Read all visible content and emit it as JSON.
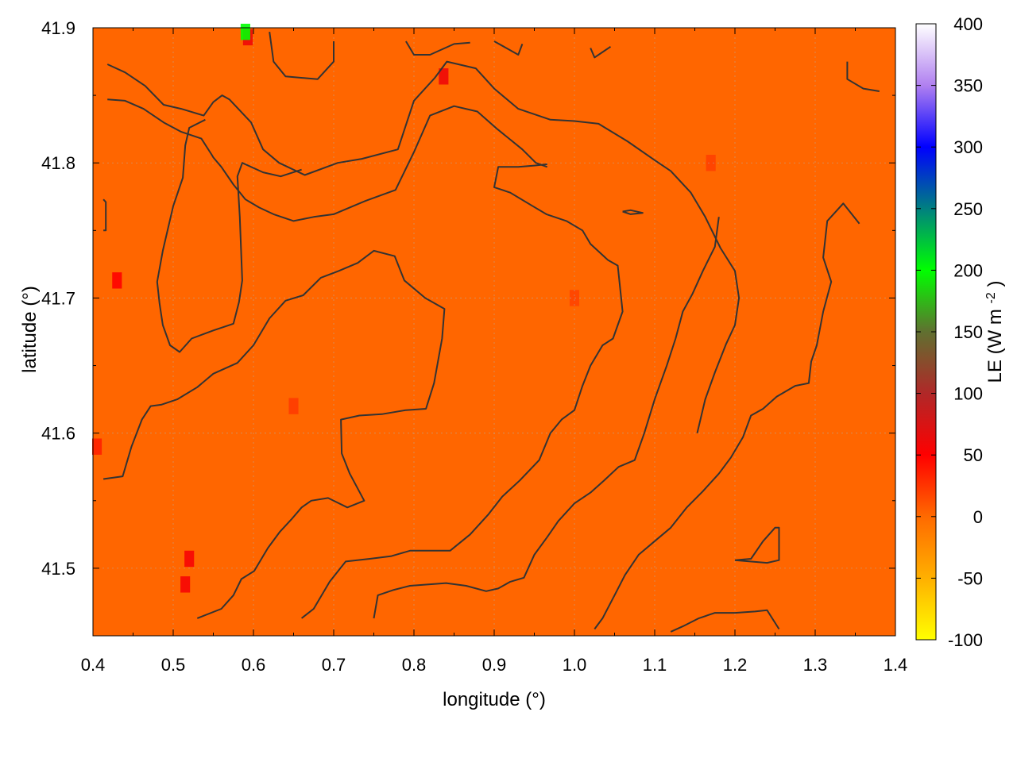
{
  "chart_data": {
    "type": "heatmap",
    "title": "",
    "xlabel": "longitude (°)",
    "ylabel": "latitude (°)",
    "colorbar_label": "LE (W m-2)",
    "colorbar_label_base": "LE (W m",
    "colorbar_label_sup": "-2",
    "colorbar_label_end": ")",
    "xlim": [
      0.4,
      1.4
    ],
    "ylim": [
      41.45,
      41.9
    ],
    "clim": [
      -100,
      400
    ],
    "x_ticks": [
      "0.4",
      "0.5",
      "0.6",
      "0.7",
      "0.8",
      "0.9",
      "1.0",
      "1.1",
      "1.2",
      "1.3",
      "1.4"
    ],
    "y_ticks": [
      "41.5",
      "41.6",
      "41.7",
      "41.8",
      "41.9"
    ],
    "colorbar_ticks": [
      "-100",
      "-50",
      "0",
      "50",
      "100",
      "150",
      "200",
      "250",
      "300",
      "350",
      "400"
    ],
    "grid": true,
    "colormap": [
      {
        "value": -100,
        "color": "#ffff00"
      },
      {
        "value": -50,
        "color": "#ffb000"
      },
      {
        "value": 0,
        "color": "#ff6a00"
      },
      {
        "value": 50,
        "color": "#ff0000"
      },
      {
        "value": 100,
        "color": "#b02828"
      },
      {
        "value": 150,
        "color": "#607030"
      },
      {
        "value": 200,
        "color": "#00ff00"
      },
      {
        "value": 250,
        "color": "#008080"
      },
      {
        "value": 300,
        "color": "#0000ff"
      },
      {
        "value": 350,
        "color": "#b080f0"
      },
      {
        "value": 400,
        "color": "#ffffff"
      }
    ],
    "background_value": 10,
    "background_color": "#ff6600",
    "patches": [
      {
        "lon": 0.593,
        "lat": 41.893,
        "value": 60
      },
      {
        "lon": 0.59,
        "lat": 41.897,
        "value": 200
      },
      {
        "lon": 0.837,
        "lat": 41.864,
        "value": 60
      },
      {
        "lon": 0.43,
        "lat": 41.713,
        "value": 50
      },
      {
        "lon": 0.52,
        "lat": 41.507,
        "value": 55
      },
      {
        "lon": 0.515,
        "lat": 41.488,
        "value": 55
      },
      {
        "lon": 0.405,
        "lat": 41.59,
        "value": 35
      },
      {
        "lon": 0.65,
        "lat": 41.62,
        "value": 22
      },
      {
        "lon": 1.17,
        "lat": 41.8,
        "value": 20
      },
      {
        "lon": 1.0,
        "lat": 41.7,
        "value": 18
      }
    ],
    "contour_color": "#333333",
    "contours": [
      [
        [
          0.418,
          41.873
        ],
        [
          0.44,
          41.867
        ],
        [
          0.465,
          41.857
        ],
        [
          0.488,
          41.843
        ],
        [
          0.51,
          41.84
        ],
        [
          0.538,
          41.835
        ],
        [
          0.55,
          41.845
        ],
        [
          0.561,
          41.85
        ],
        [
          0.57,
          41.847
        ],
        [
          0.597,
          41.83
        ],
        [
          0.612,
          41.81
        ],
        [
          0.632,
          41.8
        ],
        [
          0.664,
          41.791
        ],
        [
          0.705,
          41.8
        ],
        [
          0.735,
          41.803
        ],
        [
          0.78,
          41.81
        ],
        [
          0.8,
          41.846
        ],
        [
          0.826,
          41.863
        ],
        [
          0.841,
          41.875
        ],
        [
          0.877,
          41.87
        ],
        [
          0.9,
          41.855
        ],
        [
          0.93,
          41.84
        ],
        [
          0.97,
          41.832
        ],
        [
          1.0,
          41.831
        ],
        [
          1.03,
          41.829
        ],
        [
          1.066,
          41.816
        ],
        [
          1.1,
          41.802
        ],
        [
          1.12,
          41.794
        ],
        [
          1.145,
          41.778
        ],
        [
          1.163,
          41.76
        ],
        [
          1.182,
          41.737
        ],
        [
          1.2,
          41.72
        ],
        [
          1.205,
          41.7
        ],
        [
          1.2,
          41.68
        ],
        [
          1.189,
          41.666
        ],
        [
          1.175,
          41.645
        ],
        [
          1.163,
          41.625
        ],
        [
          1.153,
          41.6
        ]
      ],
      [
        [
          0.418,
          41.847
        ],
        [
          0.44,
          41.846
        ],
        [
          0.463,
          41.84
        ],
        [
          0.488,
          41.83
        ],
        [
          0.51,
          41.823
        ],
        [
          0.535,
          41.818
        ],
        [
          0.548,
          41.806
        ],
        [
          0.55,
          41.804
        ],
        [
          0.56,
          41.797
        ],
        [
          0.575,
          41.784
        ],
        [
          0.59,
          41.773
        ],
        [
          0.607,
          41.767
        ],
        [
          0.625,
          41.762
        ],
        [
          0.65,
          41.757
        ],
        [
          0.675,
          41.76
        ],
        [
          0.7,
          41.762
        ],
        [
          0.74,
          41.772
        ],
        [
          0.777,
          41.78
        ],
        [
          0.8,
          41.808
        ],
        [
          0.82,
          41.835
        ],
        [
          0.85,
          41.842
        ],
        [
          0.879,
          41.838
        ],
        [
          0.904,
          41.825
        ],
        [
          0.935,
          41.81
        ],
        [
          0.952,
          41.8
        ],
        [
          0.966,
          41.797
        ]
      ],
      [
        [
          0.54,
          41.832
        ],
        [
          0.52,
          41.826
        ],
        [
          0.515,
          41.813
        ],
        [
          0.512,
          41.789
        ],
        [
          0.5,
          41.768
        ],
        [
          0.487,
          41.735
        ],
        [
          0.48,
          41.712
        ],
        [
          0.483,
          41.696
        ],
        [
          0.487,
          41.68
        ],
        [
          0.496,
          41.665
        ],
        [
          0.508,
          41.66
        ],
        [
          0.523,
          41.67
        ],
        [
          0.55,
          41.676
        ],
        [
          0.575,
          41.681
        ],
        [
          0.582,
          41.697
        ],
        [
          0.586,
          41.713
        ],
        [
          0.583,
          41.76
        ],
        [
          0.58,
          41.79
        ],
        [
          0.586,
          41.8
        ],
        [
          0.612,
          41.793
        ],
        [
          0.634,
          41.79
        ],
        [
          0.66,
          41.795
        ]
      ],
      [
        [
          0.413,
          41.566
        ],
        [
          0.437,
          41.568
        ],
        [
          0.448,
          41.59
        ],
        [
          0.461,
          41.61
        ],
        [
          0.472,
          41.62
        ],
        [
          0.485,
          41.621
        ],
        [
          0.505,
          41.625
        ],
        [
          0.53,
          41.634
        ],
        [
          0.55,
          41.644
        ],
        [
          0.58,
          41.652
        ],
        [
          0.6,
          41.665
        ],
        [
          0.62,
          41.685
        ],
        [
          0.64,
          41.698
        ],
        [
          0.662,
          41.702
        ],
        [
          0.684,
          41.715
        ],
        [
          0.706,
          41.72
        ],
        [
          0.73,
          41.726
        ],
        [
          0.75,
          41.735
        ],
        [
          0.776,
          41.731
        ],
        [
          0.788,
          41.713
        ],
        [
          0.814,
          41.7
        ],
        [
          0.838,
          41.692
        ],
        [
          0.835,
          41.67
        ],
        [
          0.825,
          41.637
        ],
        [
          0.815,
          41.618
        ],
        [
          0.79,
          41.617
        ],
        [
          0.76,
          41.614
        ],
        [
          0.732,
          41.613
        ],
        [
          0.709,
          41.61
        ],
        [
          0.71,
          41.585
        ],
        [
          0.72,
          41.57
        ],
        [
          0.738,
          41.55
        ],
        [
          0.717,
          41.545
        ],
        [
          0.693,
          41.552
        ],
        [
          0.672,
          41.55
        ],
        [
          0.66,
          41.545
        ],
        [
          0.647,
          41.536
        ],
        [
          0.633,
          41.527
        ],
        [
          0.618,
          41.515
        ],
        [
          0.601,
          41.498
        ],
        [
          0.585,
          41.492
        ],
        [
          0.575,
          41.48
        ],
        [
          0.56,
          41.47
        ],
        [
          0.53,
          41.463
        ]
      ],
      [
        [
          0.66,
          41.463
        ],
        [
          0.675,
          41.47
        ],
        [
          0.695,
          41.49
        ],
        [
          0.715,
          41.505
        ],
        [
          0.745,
          41.507
        ],
        [
          0.772,
          41.509
        ],
        [
          0.795,
          41.513
        ],
        [
          0.82,
          41.513
        ],
        [
          0.845,
          41.513
        ],
        [
          0.87,
          41.525
        ],
        [
          0.893,
          41.54
        ],
        [
          0.91,
          41.553
        ],
        [
          0.932,
          41.565
        ],
        [
          0.956,
          41.58
        ],
        [
          0.97,
          41.6
        ],
        [
          0.984,
          41.61
        ],
        [
          1.0,
          41.617
        ],
        [
          1.01,
          41.635
        ],
        [
          1.02,
          41.65
        ],
        [
          1.035,
          41.665
        ],
        [
          1.048,
          41.67
        ],
        [
          1.06,
          41.69
        ],
        [
          1.054,
          41.724
        ],
        [
          1.042,
          41.728
        ],
        [
          1.02,
          41.74
        ],
        [
          1.01,
          41.75
        ],
        [
          0.99,
          41.757
        ],
        [
          0.965,
          41.762
        ],
        [
          0.948,
          41.768
        ],
        [
          0.92,
          41.778
        ],
        [
          0.9,
          41.782
        ],
        [
          0.905,
          41.797
        ],
        [
          0.93,
          41.797
        ],
        [
          0.95,
          41.798
        ],
        [
          0.966,
          41.799
        ]
      ],
      [
        [
          0.75,
          41.463
        ],
        [
          0.755,
          41.48
        ],
        [
          0.775,
          41.484
        ],
        [
          0.795,
          41.487
        ],
        [
          0.84,
          41.489
        ],
        [
          0.865,
          41.487
        ],
        [
          0.89,
          41.483
        ],
        [
          0.905,
          41.485
        ],
        [
          0.92,
          41.49
        ],
        [
          0.937,
          41.493
        ],
        [
          0.95,
          41.51
        ],
        [
          0.966,
          41.523
        ],
        [
          0.98,
          41.535
        ],
        [
          1.0,
          41.548
        ],
        [
          1.02,
          41.556
        ],
        [
          1.037,
          41.565
        ],
        [
          1.055,
          41.575
        ],
        [
          1.075,
          41.58
        ],
        [
          1.087,
          41.6
        ],
        [
          1.1,
          41.625
        ],
        [
          1.115,
          41.65
        ],
        [
          1.126,
          41.67
        ],
        [
          1.135,
          41.69
        ],
        [
          1.147,
          41.703
        ],
        [
          1.16,
          41.72
        ],
        [
          1.175,
          41.738
        ],
        [
          1.18,
          41.76
        ]
      ],
      [
        [
          1.025,
          41.455
        ],
        [
          1.035,
          41.463
        ],
        [
          1.05,
          41.48
        ],
        [
          1.063,
          41.495
        ],
        [
          1.08,
          41.51
        ],
        [
          1.1,
          41.52
        ],
        [
          1.12,
          41.53
        ],
        [
          1.14,
          41.545
        ],
        [
          1.16,
          41.557
        ],
        [
          1.18,
          41.57
        ],
        [
          1.195,
          41.582
        ],
        [
          1.21,
          41.597
        ],
        [
          1.22,
          41.613
        ],
        [
          1.235,
          41.618
        ],
        [
          1.252,
          41.627
        ],
        [
          1.275,
          41.635
        ],
        [
          1.292,
          41.637
        ],
        [
          1.295,
          41.653
        ],
        [
          1.302,
          41.665
        ],
        [
          1.31,
          41.69
        ],
        [
          1.32,
          41.712
        ],
        [
          1.31,
          41.73
        ],
        [
          1.315,
          41.757
        ],
        [
          1.335,
          41.77
        ],
        [
          1.355,
          41.755
        ]
      ],
      [
        [
          1.12,
          41.453
        ],
        [
          1.135,
          41.457
        ],
        [
          1.155,
          41.463
        ],
        [
          1.175,
          41.467
        ],
        [
          1.2,
          41.467
        ],
        [
          1.225,
          41.468
        ],
        [
          1.24,
          41.469
        ],
        [
          1.255,
          41.455
        ]
      ],
      [
        [
          1.2,
          41.506
        ],
        [
          1.22,
          41.507
        ],
        [
          1.235,
          41.52
        ],
        [
          1.25,
          41.53
        ],
        [
          1.255,
          41.53
        ],
        [
          1.255,
          41.506
        ],
        [
          1.24,
          41.504
        ],
        [
          1.2,
          41.506
        ]
      ],
      [
        [
          1.34,
          41.875
        ],
        [
          1.34,
          41.862
        ],
        [
          1.36,
          41.855
        ],
        [
          1.38,
          41.853
        ]
      ],
      [
        [
          0.62,
          41.897
        ],
        [
          0.625,
          41.875
        ],
        [
          0.64,
          41.864
        ],
        [
          0.68,
          41.862
        ],
        [
          0.7,
          41.875
        ],
        [
          0.7,
          41.89
        ]
      ],
      [
        [
          0.79,
          41.89
        ],
        [
          0.8,
          41.88
        ],
        [
          0.82,
          41.88
        ],
        [
          0.85,
          41.888
        ],
        [
          0.87,
          41.889
        ]
      ],
      [
        [
          0.9,
          41.89
        ],
        [
          0.915,
          41.885
        ],
        [
          0.93,
          41.88
        ],
        [
          0.935,
          41.888
        ]
      ],
      [
        [
          1.02,
          41.885
        ],
        [
          1.025,
          41.878
        ],
        [
          1.045,
          41.886
        ]
      ],
      [
        [
          0.413,
          41.773
        ],
        [
          0.416,
          41.771
        ],
        [
          0.416,
          41.75
        ],
        [
          0.413,
          41.75
        ]
      ],
      [
        [
          1.06,
          41.764
        ],
        [
          1.07,
          41.765
        ],
        [
          1.085,
          41.763
        ],
        [
          1.07,
          41.762
        ],
        [
          1.06,
          41.764
        ]
      ]
    ]
  }
}
